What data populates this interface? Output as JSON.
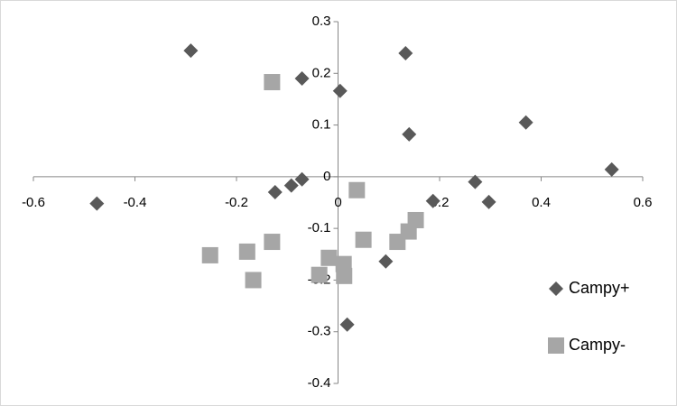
{
  "chart_data": {
    "type": "scatter",
    "xlim": [
      -0.6,
      0.6
    ],
    "ylim": [
      -0.4,
      0.3
    ],
    "xticks": [
      -0.6,
      -0.4,
      -0.2,
      0,
      0.2,
      0.4,
      0.6
    ],
    "yticks": [
      0.3,
      0.2,
      0.1,
      0,
      -0.1,
      -0.2,
      -0.3,
      -0.4
    ],
    "grid": false,
    "legend": "right",
    "series": [
      {
        "name": "Campy+",
        "color": "#595959",
        "marker": "diamond",
        "x": [
          -0.29,
          0.133,
          -0.071,
          0.004,
          0.37,
          0.14,
          0.539,
          0.27,
          -0.071,
          -0.092,
          -0.124,
          -0.475,
          0.297,
          0.187,
          0.094,
          0.018
        ],
        "values": [
          0.244,
          0.239,
          0.19,
          0.166,
          0.105,
          0.082,
          0.014,
          -0.01,
          -0.005,
          -0.017,
          -0.03,
          -0.052,
          -0.049,
          -0.047,
          -0.164,
          -0.286
        ]
      },
      {
        "name": "Campy-",
        "color": "#a6a6a6",
        "marker": "square",
        "x": [
          -0.13,
          0.037,
          0.153,
          0.139,
          0.05,
          0.117,
          -0.13,
          -0.252,
          -0.179,
          -0.018,
          0.011,
          -0.037,
          0.012,
          -0.167
        ],
        "values": [
          0.183,
          -0.026,
          -0.084,
          -0.106,
          -0.122,
          -0.126,
          -0.126,
          -0.152,
          -0.145,
          -0.157,
          -0.169,
          -0.19,
          -0.192,
          -0.2
        ]
      }
    ]
  }
}
